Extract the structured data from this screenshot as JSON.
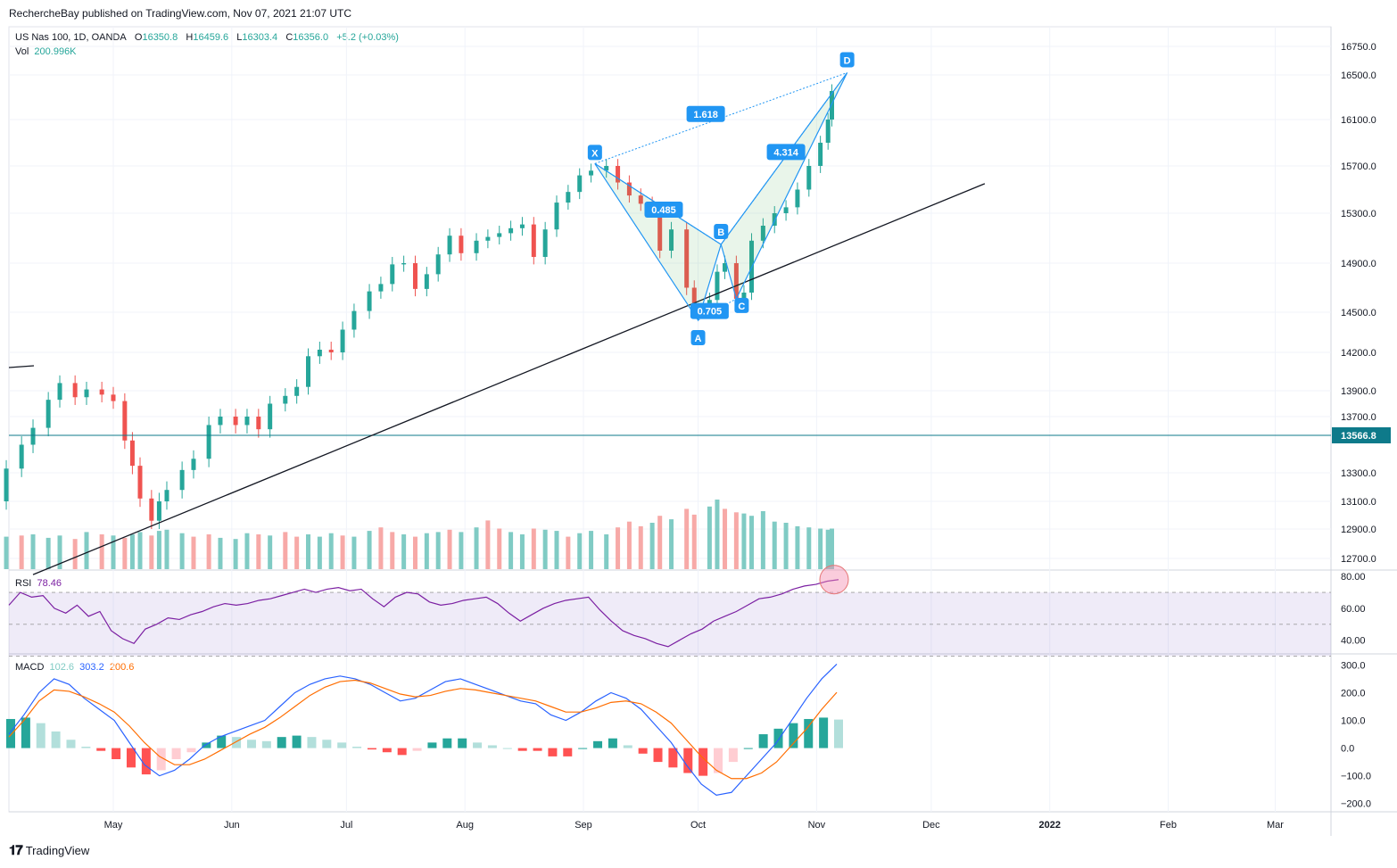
{
  "publisher": "RechercheBay published on TradingView.com, Nov 07, 2021 21:07 UTC",
  "footer": {
    "brand": "TradingView"
  },
  "legend": {
    "symbol": "US Nas 100, 1D, OANDA",
    "o_label": "O",
    "o": "16350.8",
    "h_label": "H",
    "h": "16459.6",
    "l_label": "L",
    "l": "16303.4",
    "c_label": "C",
    "c": "16356.0",
    "change": "+5.2 (+0.03%)",
    "vol_label": "Vol",
    "vol": "200.996K",
    "rsi_label": "RSI",
    "rsi": "78.46",
    "macd_label": "MACD",
    "macd_hist": "102.6",
    "macd_line": "303.2",
    "macd_signal": "200.6"
  },
  "colors": {
    "up": "#26a69a",
    "down": "#ef5350",
    "pattern": "#2196f3",
    "rsi": "#7b1fa2",
    "macd": "#2962ff",
    "signal": "#ff6d00"
  },
  "price_badge": "13566.8",
  "chart_data": [
    {
      "type": "candlestick",
      "title": "US Nas 100, 1D, OANDA",
      "ylim": [
        12500,
        16950
      ],
      "y_ticks": [
        "16750.0",
        "16500.0",
        "16100.0",
        "15700.0",
        "15300.0",
        "14900.0",
        "14500.0",
        "14200.0",
        "13900.0",
        "13700.0",
        "13300.0",
        "13100.0",
        "12900.0",
        "12700.0"
      ],
      "x_ticks": [
        "May",
        "Jun",
        "Jul",
        "Aug",
        "Sep",
        "Oct",
        "Nov",
        "Dec",
        "2022",
        "Feb",
        "Mar"
      ],
      "x_tick_dates": [
        "2021-05-01",
        "2021-06-01",
        "2021-07-01",
        "2021-08-01",
        "2021-09-01",
        "2021-10-01",
        "2021-11-01",
        "2021-12-01",
        "2022-01-01",
        "2022-02-01",
        "2022-03-01"
      ],
      "close_series": [
        [
          "2021-03-31",
          13100
        ],
        [
          "2021-04-03",
          13330
        ],
        [
          "2021-04-07",
          13500
        ],
        [
          "2021-04-10",
          13620
        ],
        [
          "2021-04-14",
          13830
        ],
        [
          "2021-04-17",
          13960
        ],
        [
          "2021-04-21",
          13850
        ],
        [
          "2021-04-24",
          13910
        ],
        [
          "2021-04-28",
          13870
        ],
        [
          "2021-05-01",
          13820
        ],
        [
          "2021-05-04",
          13530
        ],
        [
          "2021-05-06",
          13350
        ],
        [
          "2021-05-08",
          13120
        ],
        [
          "2021-05-11",
          12960
        ],
        [
          "2021-05-13",
          13100
        ],
        [
          "2021-05-15",
          13180
        ],
        [
          "2021-05-19",
          13320
        ],
        [
          "2021-05-22",
          13400
        ],
        [
          "2021-05-26",
          13640
        ],
        [
          "2021-05-29",
          13700
        ],
        [
          "2021-06-02",
          13640
        ],
        [
          "2021-06-05",
          13700
        ],
        [
          "2021-06-08",
          13610
        ],
        [
          "2021-06-11",
          13800
        ],
        [
          "2021-06-15",
          13860
        ],
        [
          "2021-06-18",
          13930
        ],
        [
          "2021-06-21",
          14170
        ],
        [
          "2021-06-24",
          14220
        ],
        [
          "2021-06-27",
          14200
        ],
        [
          "2021-06-30",
          14370
        ],
        [
          "2021-07-03",
          14510
        ],
        [
          "2021-07-07",
          14670
        ],
        [
          "2021-07-10",
          14730
        ],
        [
          "2021-07-13",
          14890
        ],
        [
          "2021-07-16",
          14900
        ],
        [
          "2021-07-19",
          14690
        ],
        [
          "2021-07-22",
          14810
        ],
        [
          "2021-07-25",
          14970
        ],
        [
          "2021-07-28",
          15120
        ],
        [
          "2021-07-31",
          14980
        ],
        [
          "2021-08-04",
          15080
        ],
        [
          "2021-08-07",
          15110
        ],
        [
          "2021-08-10",
          15140
        ],
        [
          "2021-08-13",
          15180
        ],
        [
          "2021-08-16",
          15210
        ],
        [
          "2021-08-19",
          14950
        ],
        [
          "2021-08-22",
          15170
        ],
        [
          "2021-08-25",
          15390
        ],
        [
          "2021-08-28",
          15480
        ],
        [
          "2021-08-31",
          15620
        ],
        [
          "2021-09-03",
          15660
        ],
        [
          "2021-09-07",
          15700
        ],
        [
          "2021-09-10",
          15560
        ],
        [
          "2021-09-13",
          15450
        ],
        [
          "2021-09-16",
          15380
        ],
        [
          "2021-09-19",
          15330
        ],
        [
          "2021-09-21",
          15000
        ],
        [
          "2021-09-24",
          15170
        ],
        [
          "2021-09-28",
          14700
        ],
        [
          "2021-09-30",
          14560
        ],
        [
          "2021-10-04",
          14600
        ],
        [
          "2021-10-06",
          14830
        ],
        [
          "2021-10-08",
          14900
        ],
        [
          "2021-10-11",
          14610
        ],
        [
          "2021-10-13",
          14660
        ],
        [
          "2021-10-15",
          15080
        ],
        [
          "2021-10-18",
          15200
        ],
        [
          "2021-10-21",
          15300
        ],
        [
          "2021-10-24",
          15350
        ],
        [
          "2021-10-27",
          15500
        ],
        [
          "2021-10-30",
          15700
        ],
        [
          "2021-11-02",
          15900
        ],
        [
          "2021-11-04",
          16100
        ],
        [
          "2021-11-05",
          16356
        ]
      ],
      "horizontal_line": 13566.8,
      "trendline": [
        [
          "2021-04-10",
          12590
        ],
        [
          "2021-12-15",
          15550
        ]
      ],
      "harmonic_pattern": {
        "points": [
          {
            "label": "X",
            "date": "2021-09-04",
            "price": 15720
          },
          {
            "label": "A",
            "date": "2021-10-01",
            "price": 14440
          },
          {
            "label": "B",
            "date": "2021-10-07",
            "price": 15050
          },
          {
            "label": "C",
            "date": "2021-10-11",
            "price": 14610
          },
          {
            "label": "D",
            "date": "2021-11-09",
            "price": 16520
          }
        ],
        "ratios": [
          {
            "text": "0.485",
            "date": "2021-09-22",
            "price": 15330
          },
          {
            "text": "0.705",
            "date": "2021-10-04",
            "price": 14510
          },
          {
            "text": "4.314",
            "date": "2021-10-24",
            "price": 15820
          },
          {
            "text": "1.618",
            "date": "2021-10-03",
            "price": 16150
          }
        ]
      }
    },
    {
      "type": "bar",
      "title": "Vol",
      "description": "volume in thousands",
      "values": [
        150,
        140,
        145,
        150,
        135,
        145,
        130,
        160,
        150,
        145,
        135,
        150,
        160,
        145,
        165,
        170,
        155,
        140,
        150,
        135,
        130,
        155,
        150,
        145,
        160,
        140,
        150,
        140,
        155,
        145,
        140,
        165,
        180,
        160,
        150,
        140,
        155,
        160,
        170,
        160,
        180,
        210,
        175,
        160,
        150,
        175,
        170,
        165,
        140,
        155,
        165,
        150,
        180,
        205,
        185,
        200,
        230,
        215,
        260,
        235,
        270,
        300,
        260,
        245,
        240,
        230,
        250,
        205,
        200,
        185,
        180,
        175,
        170,
        175,
        180,
        201
      ],
      "signs": [
        "u",
        "u",
        "d",
        "u",
        "u",
        "u",
        "d",
        "u",
        "d",
        "u",
        "d",
        "u",
        "u",
        "d",
        "u",
        "u",
        "u",
        "d",
        "d",
        "u",
        "u",
        "u",
        "d",
        "u",
        "d",
        "d",
        "u",
        "u",
        "u",
        "d",
        "u",
        "u",
        "d",
        "d",
        "u",
        "d",
        "u",
        "u",
        "d",
        "u",
        "u",
        "d",
        "d",
        "u",
        "u",
        "d",
        "u",
        "u",
        "d",
        "u",
        "u",
        "u",
        "d",
        "d",
        "d",
        "u",
        "d",
        "u",
        "d",
        "d",
        "u",
        "u",
        "d",
        "d",
        "u",
        "u",
        "u",
        "u",
        "u",
        "u",
        "u",
        "u",
        "u",
        "u",
        "u",
        "u"
      ]
    },
    {
      "type": "line",
      "title": "RSI",
      "ylim": [
        32,
        84
      ],
      "y_ticks": [
        "80.00",
        "60.00",
        "40.00"
      ],
      "band": [
        30,
        70
      ],
      "values": [
        62,
        70,
        67,
        68,
        60,
        57,
        62,
        55,
        58,
        46,
        41,
        38,
        47,
        50,
        54,
        53,
        56,
        58,
        61,
        63,
        62,
        63,
        65,
        66,
        68,
        70,
        72,
        70,
        72,
        73,
        71,
        72,
        66,
        61,
        67,
        70,
        69,
        64,
        62,
        63,
        65,
        66,
        67,
        63,
        57,
        52,
        56,
        60,
        63,
        65,
        66,
        67,
        59,
        52,
        46,
        43,
        41,
        38,
        36,
        40,
        44,
        47,
        52,
        55,
        58,
        62,
        66,
        67,
        69,
        72,
        74,
        75,
        77,
        78
      ]
    },
    {
      "type": "line",
      "title": "MACD",
      "ylim": [
        -230,
        340
      ],
      "y_ticks": [
        "300.0",
        "200.0",
        "100.0",
        "0.0",
        "−100.0",
        "−200.0"
      ],
      "macd": [
        50,
        120,
        200,
        250,
        230,
        180,
        140,
        100,
        20,
        -60,
        -100,
        -80,
        -40,
        10,
        40,
        60,
        80,
        100,
        150,
        200,
        230,
        250,
        260,
        250,
        230,
        200,
        170,
        180,
        210,
        240,
        250,
        230,
        210,
        190,
        170,
        160,
        120,
        100,
        130,
        170,
        200,
        180,
        140,
        80,
        20,
        -60,
        -130,
        -170,
        -160,
        -100,
        -40,
        20,
        100,
        180,
        250,
        303
      ],
      "signal": [
        40,
        100,
        170,
        210,
        205,
        185,
        160,
        130,
        80,
        20,
        -30,
        -60,
        -60,
        -40,
        -10,
        20,
        50,
        75,
        110,
        150,
        190,
        220,
        240,
        245,
        235,
        215,
        195,
        185,
        190,
        205,
        215,
        210,
        200,
        190,
        180,
        170,
        150,
        130,
        130,
        145,
        165,
        170,
        160,
        130,
        90,
        30,
        -30,
        -80,
        -110,
        -110,
        -90,
        -50,
        10,
        70,
        140,
        201
      ],
      "hist": [
        105,
        110,
        90,
        60,
        30,
        5,
        -10,
        -40,
        -70,
        -95,
        -80,
        -40,
        -15,
        20,
        45,
        40,
        30,
        25,
        40,
        45,
        40,
        30,
        20,
        5,
        -5,
        -15,
        -25,
        -10,
        20,
        35,
        35,
        20,
        10,
        0,
        -10,
        -10,
        -30,
        -30,
        0,
        25,
        35,
        10,
        -20,
        -50,
        -70,
        -90,
        -100,
        -90,
        -50,
        0,
        50,
        70,
        90,
        105,
        110,
        103
      ]
    }
  ]
}
